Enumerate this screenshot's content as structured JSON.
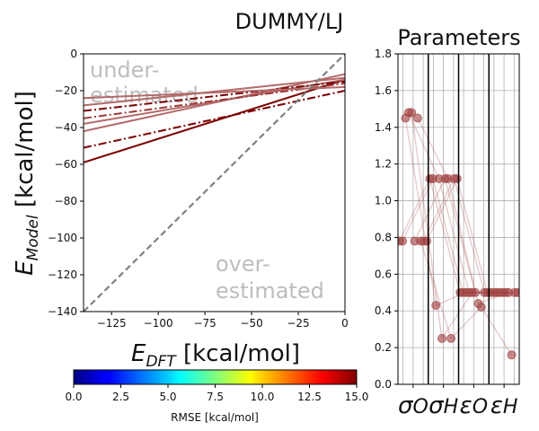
{
  "figure": {
    "suptitle": "DUMMY/LJ",
    "colorbar": {
      "label": "RMSE [kcal/mol]",
      "ticks": [
        "0.0",
        "2.5",
        "5.0",
        "7.5",
        "10.0",
        "12.5",
        "15.0"
      ],
      "range": [
        0,
        15
      ],
      "colormap": "jet"
    }
  },
  "chart_data": [
    {
      "type": "line",
      "xlabel": "E_DFT [kcal/mol]",
      "ylabel": "E_Model [kcal/mol]",
      "xlim": [
        -140,
        0
      ],
      "ylim": [
        -140,
        0
      ],
      "xticks": [
        -125,
        -100,
        -75,
        -50,
        -25,
        0
      ],
      "yticks": [
        0,
        -20,
        -40,
        -60,
        -80,
        -100,
        -120,
        -140
      ],
      "grid": false,
      "annotations": [
        "under-",
        "estimated",
        "over-",
        "estimated"
      ],
      "diagonal": {
        "x": [
          -140,
          0
        ],
        "y": [
          -140,
          0
        ],
        "style": "dashed",
        "color": "#808080"
      },
      "series": [
        {
          "x": [
            -140,
            0
          ],
          "y": [
            -59,
            -14
          ],
          "color": "#7a0000",
          "style": "solid"
        },
        {
          "x": [
            -140,
            0
          ],
          "y": [
            -51,
            -20
          ],
          "color": "#7a0000",
          "style": "dashdot"
        },
        {
          "x": [
            -140,
            0
          ],
          "y": [
            -42,
            -11
          ],
          "color": "#b36a6a",
          "style": "solid"
        },
        {
          "x": [
            -140,
            0
          ],
          "y": [
            -38,
            -14
          ],
          "color": "#b36a6a",
          "style": "solid"
        },
        {
          "x": [
            -140,
            0
          ],
          "y": [
            -35,
            -16
          ],
          "color": "#9e3a3a",
          "style": "dashdot"
        },
        {
          "x": [
            -140,
            0
          ],
          "y": [
            -31,
            -15
          ],
          "color": "#7a0000",
          "style": "dashdot"
        },
        {
          "x": [
            -140,
            0
          ],
          "y": [
            -28,
            -13
          ],
          "color": "#b36a6a",
          "style": "solid"
        },
        {
          "x": [
            -140,
            0
          ],
          "y": [
            -24,
            -18
          ],
          "color": "#b36a6a",
          "style": "solid"
        }
      ]
    },
    {
      "type": "scatter",
      "title": "Parameters",
      "ylim": [
        0,
        1.8
      ],
      "yticks": [
        "0.0",
        "0.2",
        "0.4",
        "0.6",
        "0.8",
        "1.0",
        "1.2",
        "1.4",
        "1.6",
        "1.8"
      ],
      "xticklabels": [
        "σ_O",
        "σ_H",
        "ε_O",
        "ε_H"
      ],
      "grid": true,
      "color": "#a04040",
      "traces": [
        [
          0.78,
          1.12,
          0.5,
          0.5
        ],
        [
          0.78,
          1.12,
          0.5,
          0.5
        ],
        [
          1.45,
          0.43,
          0.5,
          0.5
        ],
        [
          1.48,
          1.12,
          0.5,
          0.5
        ],
        [
          1.48,
          0.25,
          0.5,
          0.5
        ],
        [
          0.78,
          1.12,
          0.5,
          0.5
        ],
        [
          1.45,
          1.12,
          0.44,
          0.5
        ],
        [
          0.78,
          0.25,
          0.42,
          0.16
        ],
        [
          0.78,
          1.12,
          0.5,
          0.5
        ],
        [
          0.78,
          1.12,
          0.5,
          0.5
        ]
      ]
    }
  ]
}
